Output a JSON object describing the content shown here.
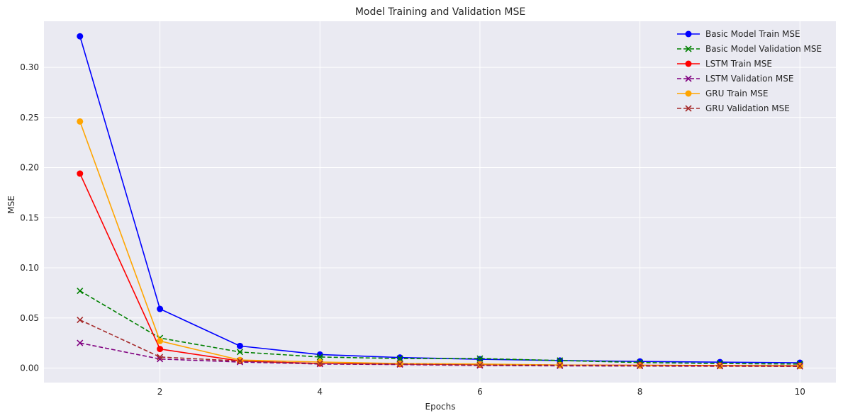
{
  "chart_data": {
    "type": "line",
    "title": "Model Training and Validation MSE",
    "xlabel": "Epochs",
    "ylabel": "MSE",
    "xlim": [
      0.55,
      10.45
    ],
    "ylim": [
      -0.0145,
      0.346
    ],
    "xticks": [
      2,
      4,
      6,
      8,
      10
    ],
    "yticks": [
      0.0,
      0.05,
      0.1,
      0.15,
      0.2,
      0.25,
      0.3
    ],
    "ytick_labels": [
      "0.00",
      "0.05",
      "0.10",
      "0.15",
      "0.20",
      "0.25",
      "0.30"
    ],
    "grid": true,
    "background": "#eaeaf2",
    "legend": "top-right",
    "x": [
      1,
      2,
      3,
      4,
      5,
      6,
      7,
      8,
      9,
      10
    ],
    "series": [
      {
        "name": "Basic Model Train MSE",
        "color": "#0000ff",
        "linestyle": "solid",
        "marker": "circle",
        "values": [
          0.331,
          0.059,
          0.022,
          0.0135,
          0.0105,
          0.0088,
          0.0075,
          0.0066,
          0.0059,
          0.0053
        ]
      },
      {
        "name": "Basic Model Validation MSE",
        "color": "#008000",
        "linestyle": "dashed",
        "marker": "x",
        "values": [
          0.077,
          0.03,
          0.016,
          0.011,
          0.0095,
          0.0095,
          0.0075,
          0.0055,
          0.0045,
          0.004
        ]
      },
      {
        "name": "LSTM Train MSE",
        "color": "#ff0000",
        "linestyle": "solid",
        "marker": "circle",
        "values": [
          0.194,
          0.019,
          0.007,
          0.0045,
          0.004,
          0.0035,
          0.003,
          0.0028,
          0.0025,
          0.0023
        ]
      },
      {
        "name": "LSTM Validation MSE",
        "color": "#800080",
        "linestyle": "dashed",
        "marker": "x",
        "values": [
          0.025,
          0.009,
          0.006,
          0.004,
          0.0035,
          0.0025,
          0.0022,
          0.002,
          0.0018,
          0.0016
        ]
      },
      {
        "name": "GRU Train MSE",
        "color": "#ffa500",
        "linestyle": "solid",
        "marker": "circle",
        "values": [
          0.246,
          0.027,
          0.008,
          0.006,
          0.0045,
          0.004,
          0.003,
          0.0025,
          0.0022,
          0.002
        ]
      },
      {
        "name": "GRU Validation MSE",
        "color": "#a52a2a",
        "linestyle": "dashed",
        "marker": "x",
        "values": [
          0.048,
          0.011,
          0.007,
          0.0045,
          0.004,
          0.003,
          0.0028,
          0.0025,
          0.0022,
          0.002
        ]
      }
    ]
  }
}
